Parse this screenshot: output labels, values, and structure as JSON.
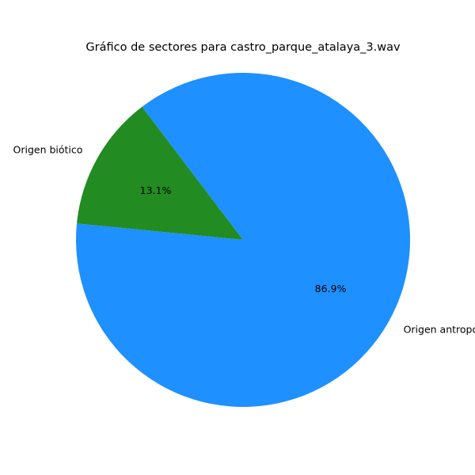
{
  "chart_data": {
    "type": "pie",
    "title": "Gráfico de sectores para castro_parque_atalaya_3.wav",
    "categories": [
      "Origen biótico",
      "Origen antropofónico"
    ],
    "values": [
      13.1,
      86.9
    ],
    "value_labels": [
      "13.1%",
      "86.9%"
    ],
    "colors": [
      "#228b22",
      "#1e90ff"
    ],
    "legend": "none"
  }
}
